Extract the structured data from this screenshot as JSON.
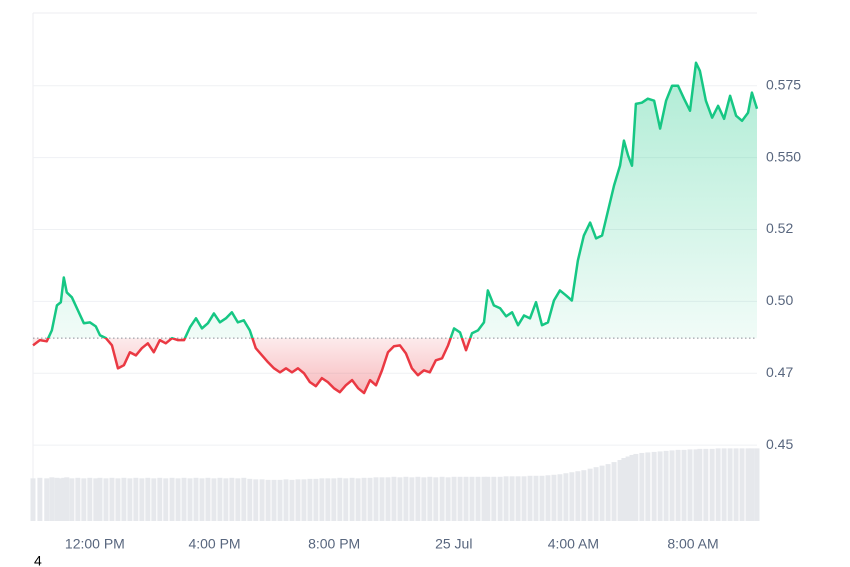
{
  "chart_data": {
    "type": "line",
    "footnote": "4",
    "x": [
      9.93,
      10.16,
      10.39,
      10.56,
      10.73,
      10.86,
      10.96,
      11.06,
      11.23,
      11.43,
      11.63,
      11.83,
      12.03,
      12.17,
      12.37,
      12.57,
      12.77,
      12.97,
      13.17,
      13.37,
      13.57,
      13.77,
      13.97,
      14.17,
      14.37,
      14.58,
      14.78,
      14.98,
      15.18,
      15.38,
      15.58,
      15.78,
      15.98,
      16.18,
      16.38,
      16.58,
      16.78,
      16.98,
      17.18,
      17.38,
      17.59,
      17.79,
      17.99,
      18.19,
      18.39,
      18.59,
      18.79,
      18.99,
      19.19,
      19.39,
      19.59,
      19.79,
      19.99,
      20.19,
      20.39,
      20.6,
      20.8,
      21.0,
      21.2,
      21.4,
      21.6,
      21.8,
      22.0,
      22.2,
      22.4,
      22.6,
      22.8,
      23.0,
      23.2,
      23.4,
      23.61,
      23.81,
      24.01,
      24.21,
      24.41,
      24.61,
      24.81,
      25.01,
      25.14,
      25.34,
      25.55,
      25.75,
      25.95,
      26.15,
      26.35,
      26.55,
      26.75,
      26.95,
      27.15,
      27.35,
      27.55,
      27.75,
      27.95,
      28.15,
      28.35,
      28.56,
      28.76,
      28.96,
      29.16,
      29.36,
      29.56,
      29.69,
      29.83,
      29.96,
      30.09,
      30.29,
      30.49,
      30.7,
      30.9,
      31.1,
      31.3,
      31.5,
      31.7,
      31.9,
      32.1,
      32.23,
      32.43,
      32.64,
      32.84,
      33.04,
      33.24,
      33.44,
      33.64,
      33.84,
      33.97,
      34.14
    ],
    "series": [
      {
        "color": "#16c784",
        "negative_color": "#ea3943",
        "values": [
          0.4847,
          0.4865,
          0.4861,
          0.4899,
          0.4986,
          0.4997,
          0.5083,
          0.5031,
          0.5014,
          0.4969,
          0.4924,
          0.4927,
          0.4913,
          0.4882,
          0.4872,
          0.4847,
          0.4767,
          0.4778,
          0.4823,
          0.4812,
          0.4837,
          0.4854,
          0.4823,
          0.4865,
          0.4854,
          0.4872,
          0.4865,
          0.4865,
          0.491,
          0.4941,
          0.4906,
          0.4924,
          0.4958,
          0.4927,
          0.4941,
          0.4962,
          0.4927,
          0.4934,
          0.4899,
          0.4837,
          0.4812,
          0.4788,
          0.4767,
          0.4753,
          0.4767,
          0.4753,
          0.4767,
          0.475,
          0.4719,
          0.4705,
          0.4733,
          0.4719,
          0.4698,
          0.4684,
          0.4708,
          0.4726,
          0.4698,
          0.4681,
          0.4726,
          0.4708,
          0.476,
          0.4823,
          0.4844,
          0.4847,
          0.4819,
          0.4767,
          0.4743,
          0.476,
          0.4753,
          0.4795,
          0.4802,
          0.4847,
          0.4906,
          0.4892,
          0.483,
          0.4889,
          0.4899,
          0.4927,
          0.5038,
          0.4986,
          0.4976,
          0.4948,
          0.4962,
          0.4917,
          0.4951,
          0.4941,
          0.4997,
          0.4917,
          0.4927,
          0.5003,
          0.5038,
          0.5021,
          0.5003,
          0.5142,
          0.5229,
          0.5274,
          0.5219,
          0.5229,
          0.5316,
          0.5403,
          0.5472,
          0.5559,
          0.5507,
          0.5472,
          0.5687,
          0.5691,
          0.5705,
          0.5698,
          0.5601,
          0.5698,
          0.575,
          0.575,
          0.5705,
          0.5663,
          0.583,
          0.5802,
          0.5698,
          0.5639,
          0.568,
          0.5635,
          0.5715,
          0.5646,
          0.5628,
          0.5656,
          0.5726,
          0.567
        ]
      }
    ],
    "baseline": 0.4872,
    "volume": {
      "color": "#e6e8ec",
      "axis": "y2",
      "values": [
        8.4,
        8.5,
        8.4,
        8.6,
        8.5,
        8.4,
        8.5,
        8.6,
        8.4,
        8.5,
        8.4,
        8.5,
        8.4,
        8.5,
        8.4,
        8.5,
        8.4,
        8.5,
        8.4,
        8.5,
        8.4,
        8.5,
        8.4,
        8.5,
        8.4,
        8.5,
        8.4,
        8.5,
        8.4,
        8.5,
        8.4,
        8.5,
        8.4,
        8.5,
        8.4,
        8.5,
        8.4,
        8.5,
        8.3,
        8.2,
        8.2,
        8.1,
        8.1,
        8.1,
        8.2,
        8.1,
        8.2,
        8.2,
        8.3,
        8.3,
        8.4,
        8.4,
        8.4,
        8.5,
        8.4,
        8.5,
        8.4,
        8.5,
        8.5,
        8.6,
        8.6,
        8.6,
        8.7,
        8.6,
        8.7,
        8.6,
        8.7,
        8.6,
        8.7,
        8.6,
        8.7,
        8.6,
        8.7,
        8.7,
        8.7,
        8.7,
        8.7,
        8.7,
        8.7,
        8.7,
        8.7,
        8.8,
        8.8,
        8.8,
        8.8,
        8.9,
        8.9,
        8.9,
        9.0,
        9.1,
        9.2,
        9.4,
        9.6,
        9.8,
        10.0,
        10.3,
        10.6,
        10.9,
        11.2,
        11.6,
        12.0,
        12.4,
        12.7,
        13.0,
        13.2,
        13.4,
        13.5,
        13.6,
        13.7,
        13.8,
        13.9,
        14.0,
        14.0,
        14.1,
        14.1,
        14.2,
        14.2,
        14.2,
        14.3,
        14.3,
        14.3,
        14.3,
        14.3,
        14.3,
        14.3,
        14.3
      ]
    },
    "y2lim": [
      0,
      100
    ],
    "xlim": [
      9.93,
      34.14
    ],
    "xticks": [
      {
        "value": 12,
        "label": "12:00 PM"
      },
      {
        "value": 16,
        "label": "4:00 PM"
      },
      {
        "value": 20,
        "label": "8:00 PM"
      },
      {
        "value": 24,
        "label": "25 Jul"
      },
      {
        "value": 28,
        "label": "4:00 AM"
      },
      {
        "value": 32,
        "label": "8:00 AM"
      }
    ],
    "ylim": [
      0.4236,
      0.6003
    ],
    "yticks": [
      {
        "value": 0.45,
        "label": "0.45"
      },
      {
        "value": 0.475,
        "label": "0.47"
      },
      {
        "value": 0.5,
        "label": "0.50"
      },
      {
        "value": 0.525,
        "label": "0.52"
      },
      {
        "value": 0.55,
        "label": "0.550"
      },
      0.575
    ],
    "grid": true
  }
}
